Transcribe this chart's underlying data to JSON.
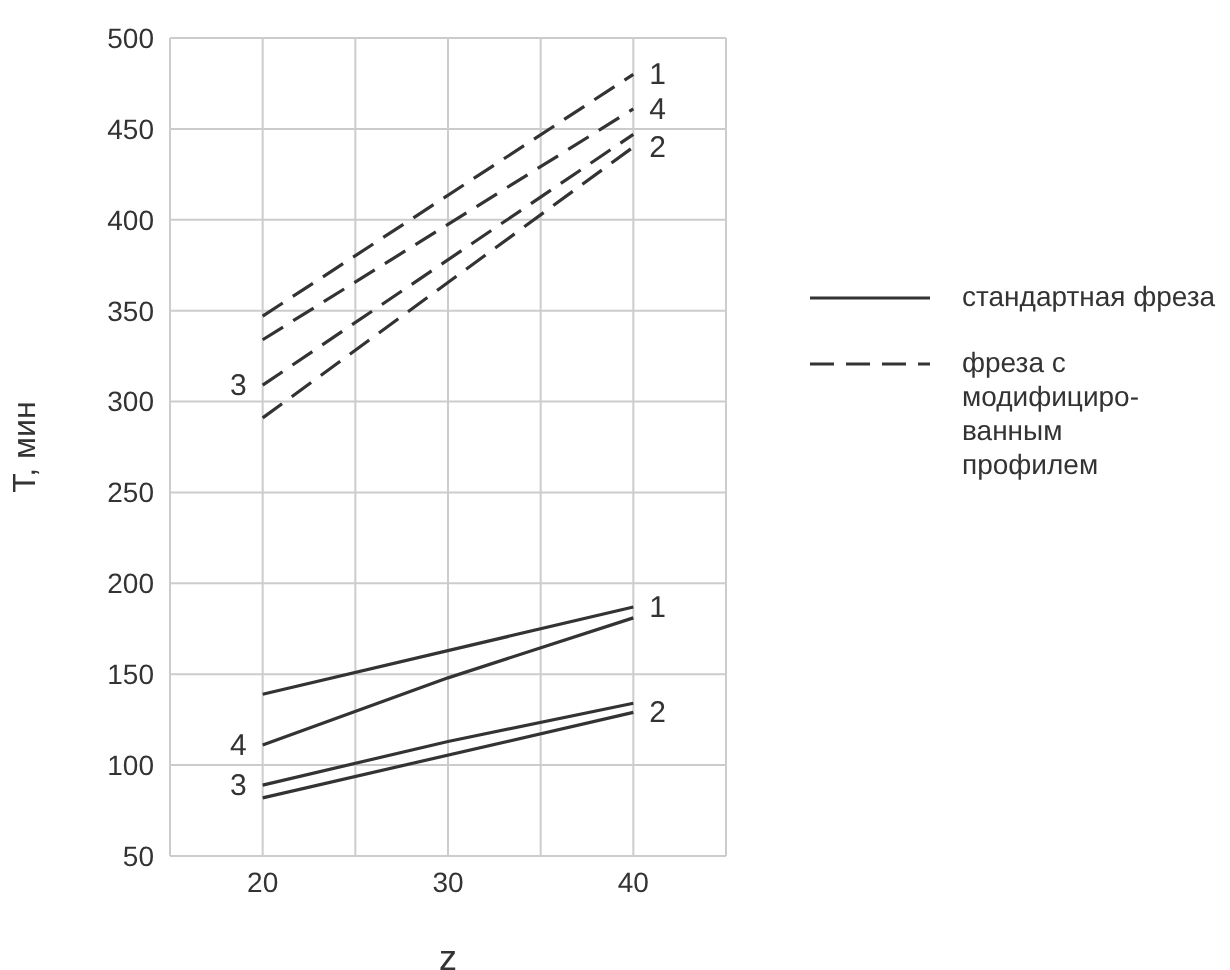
{
  "chart_data": {
    "type": "line",
    "xlabel": "z",
    "ylabel": "T, мин",
    "xlim": [
      15,
      45
    ],
    "ylim": [
      50,
      500
    ],
    "xticks": [
      {
        "value": 15,
        "label": null
      },
      20,
      {
        "value": 25,
        "label": null
      },
      30,
      {
        "value": 35,
        "label": null
      },
      40,
      {
        "value": 45,
        "label": null
      }
    ],
    "yticks": [
      50,
      100,
      150,
      200,
      250,
      300,
      350,
      400,
      450,
      500
    ],
    "grid": true,
    "legend": "right",
    "marker": "none",
    "series": [
      {
        "name": "1",
        "color": "#333333",
        "line_style": "solid",
        "x": [
          20,
          40
        ],
        "values": [
          139,
          187
        ]
      },
      {
        "name": "2",
        "color": "#333333",
        "line_style": "solid",
        "x": [
          20,
          40
        ],
        "values": [
          82,
          129
        ]
      },
      {
        "name": "3",
        "color": "#333333",
        "line_style": "solid",
        "x": [
          20,
          30,
          40
        ],
        "values": [
          89,
          113,
          134
        ]
      },
      {
        "name": "4",
        "color": "#333333",
        "line_style": "solid",
        "x": [
          20,
          30,
          40
        ],
        "values": [
          111,
          148,
          181
        ]
      },
      {
        "name": "1",
        "color": "#333333",
        "line_style": "dashed",
        "x": [
          20,
          40
        ],
        "values": [
          347,
          480
        ]
      },
      {
        "name": "2",
        "color": "#333333",
        "line_style": "dashed",
        "x": [
          20,
          40
        ],
        "values": [
          291,
          440
        ]
      },
      {
        "name": "3",
        "color": "#333333",
        "line_style": "dashed",
        "x": [
          20,
          40
        ],
        "values": [
          309,
          447
        ]
      },
      {
        "name": "4",
        "color": "#333333",
        "line_style": "dashed",
        "x": [
          20,
          40
        ],
        "values": [
          334,
          461
        ]
      }
    ],
    "annotations": [
      "стандартная фреза",
      "фреза с\nмодифициро-\nванным\nпрофилем"
    ]
  }
}
